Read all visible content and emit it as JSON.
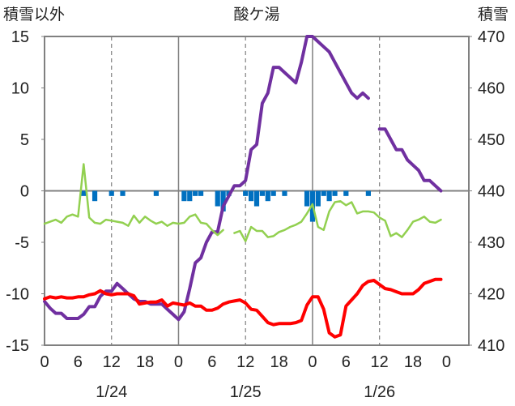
{
  "chart_data": {
    "type": "line",
    "title": "酸ケ湯",
    "left_axis_label": "積雪以外",
    "right_axis_label": "積雪",
    "left_ylim": [
      -15,
      15
    ],
    "left_ticks": [
      "15",
      "10",
      "5",
      "0",
      "-5",
      "-10",
      "-15"
    ],
    "right_ylim": [
      410,
      470
    ],
    "right_ticks": [
      "470",
      "460",
      "450",
      "440",
      "430",
      "420",
      "410"
    ],
    "x_hour_ticks": [
      "0",
      "6",
      "12",
      "18",
      "0",
      "6",
      "12",
      "18",
      "0",
      "6",
      "12",
      "18",
      "0"
    ],
    "date_labels": [
      "1/24",
      "1/25",
      "1/26"
    ],
    "grid": "dashed vertical at 12:00, solid at midnight, solid zero line",
    "colors": {
      "snow_depth": "#7030A0",
      "temperature": "#FF0000",
      "wind": "#92D050",
      "snow_change": "#0070C0",
      "axis": "#808080"
    },
    "series": [
      {
        "key": "snow_depth",
        "axis": "right",
        "points": [
          [
            0,
            418.5
          ],
          [
            1,
            417.2
          ],
          [
            2,
            416.2
          ],
          [
            3,
            416.2
          ],
          [
            4,
            415.2
          ],
          [
            5,
            415.2
          ],
          [
            6,
            415.2
          ],
          [
            7,
            416
          ],
          [
            8,
            417.5
          ],
          [
            9,
            417.5
          ],
          [
            10,
            419.5
          ],
          [
            11,
            420.5
          ],
          [
            12,
            420.5
          ],
          [
            13,
            422
          ],
          [
            14,
            421
          ],
          [
            15,
            420
          ],
          [
            16,
            419
          ],
          [
            17,
            418.5
          ],
          [
            18,
            418.5
          ],
          [
            19,
            418
          ],
          [
            20,
            418
          ],
          [
            21,
            418
          ],
          [
            22,
            417
          ],
          [
            23,
            416
          ],
          [
            24,
            415
          ],
          [
            25,
            416.5
          ],
          [
            26,
            421
          ],
          [
            27,
            426
          ],
          [
            28,
            427
          ],
          [
            29,
            430
          ],
          [
            30,
            432
          ],
          [
            31,
            432
          ],
          [
            32,
            437
          ],
          [
            33,
            439
          ],
          [
            34,
            441
          ],
          [
            35,
            441
          ],
          [
            36,
            442
          ],
          [
            37,
            448
          ],
          [
            38,
            449
          ],
          [
            39,
            457
          ],
          [
            40,
            459
          ],
          [
            41,
            464
          ],
          [
            42,
            464
          ],
          [
            43,
            463
          ],
          [
            44,
            462
          ],
          [
            45,
            461
          ],
          [
            46,
            465
          ],
          [
            47,
            470
          ],
          [
            48,
            470
          ],
          [
            49,
            469
          ],
          [
            50,
            468
          ],
          [
            51,
            467
          ],
          [
            52,
            465
          ],
          [
            53,
            463
          ],
          [
            54,
            461
          ],
          [
            55,
            459
          ],
          [
            56,
            458
          ],
          [
            57,
            459
          ],
          [
            58,
            458
          ],
          null,
          [
            60,
            452
          ],
          [
            61,
            452
          ],
          [
            62,
            450
          ],
          [
            63,
            448
          ],
          [
            64,
            448
          ],
          [
            65,
            446
          ],
          [
            66,
            445
          ],
          [
            67,
            444
          ],
          [
            68,
            442
          ],
          [
            69,
            442
          ],
          [
            70,
            441
          ],
          [
            71,
            440
          ]
        ]
      },
      {
        "key": "temperature",
        "axis": "left",
        "points": [
          [
            0,
            -10.5
          ],
          [
            1,
            -10.3
          ],
          [
            2,
            -10.4
          ],
          [
            3,
            -10.3
          ],
          [
            4,
            -10.4
          ],
          [
            5,
            -10.4
          ],
          [
            6,
            -10.3
          ],
          [
            7,
            -10.3
          ],
          [
            8,
            -10.1
          ],
          [
            9,
            -10
          ],
          [
            10,
            -9.7
          ],
          [
            11,
            -10
          ],
          [
            12,
            -10.1
          ],
          [
            13,
            -10
          ],
          [
            14,
            -10
          ],
          [
            15,
            -10
          ],
          [
            16,
            -10.2
          ],
          [
            17,
            -11
          ],
          [
            18,
            -10.9
          ],
          [
            19,
            -10.8
          ],
          [
            20,
            -10.8
          ],
          [
            21,
            -10.6
          ],
          [
            22,
            -11.2
          ],
          [
            23,
            -10.9
          ],
          [
            24,
            -11
          ],
          [
            25,
            -11.1
          ],
          [
            26,
            -10.9
          ],
          [
            27,
            -11.2
          ],
          [
            28,
            -11.2
          ],
          [
            29,
            -11.6
          ],
          [
            30,
            -11.6
          ],
          [
            31,
            -11.4
          ],
          [
            32,
            -11
          ],
          [
            33,
            -10.8
          ],
          [
            34,
            -10.7
          ],
          [
            35,
            -10.6
          ],
          [
            36,
            -10.9
          ],
          [
            37,
            -11.5
          ],
          [
            38,
            -11.6
          ],
          [
            39,
            -12.2
          ],
          [
            40,
            -12.8
          ],
          [
            41,
            -13
          ],
          [
            42,
            -12.9
          ],
          [
            43,
            -12.9
          ],
          [
            44,
            -12.9
          ],
          [
            45,
            -12.8
          ],
          [
            46,
            -12.6
          ],
          [
            47,
            -11.1
          ],
          [
            48,
            -10.3
          ],
          [
            49,
            -10.3
          ],
          [
            50,
            -11.5
          ],
          [
            51,
            -13.8
          ],
          [
            52,
            -14.2
          ],
          [
            53,
            -14
          ],
          [
            54,
            -11.2
          ],
          [
            55,
            -10.6
          ],
          [
            56,
            -10
          ],
          [
            57,
            -9.2
          ],
          [
            58,
            -8.8
          ],
          [
            59,
            -8.7
          ],
          [
            60,
            -9.1
          ],
          [
            61,
            -9.5
          ],
          [
            62,
            -9.6
          ],
          [
            63,
            -9.8
          ],
          [
            64,
            -10
          ],
          [
            65,
            -10
          ],
          [
            66,
            -10
          ],
          [
            67,
            -9.6
          ],
          [
            68,
            -9
          ],
          [
            69,
            -8.8
          ],
          [
            70,
            -8.6
          ],
          [
            71,
            -8.6
          ]
        ]
      },
      {
        "key": "wind",
        "axis": "left",
        "points": [
          [
            0,
            -3.2
          ],
          [
            1,
            -3
          ],
          [
            2,
            -2.8
          ],
          [
            3,
            -3.1
          ],
          [
            4,
            -2.5
          ],
          [
            5,
            -2.3
          ],
          [
            6,
            -2.5
          ],
          [
            7,
            2.6
          ],
          [
            8,
            -2.6
          ],
          [
            9,
            -3.1
          ],
          [
            10,
            -3.2
          ],
          [
            11,
            -2.8
          ],
          [
            12,
            -2.9
          ],
          [
            13,
            -3
          ],
          [
            14,
            -3.1
          ],
          [
            15,
            -3.4
          ],
          [
            16,
            -2.4
          ],
          [
            17,
            -3.1
          ],
          [
            18,
            -2.5
          ],
          [
            19,
            -2.9
          ],
          [
            20,
            -3.2
          ],
          [
            21,
            -3
          ],
          [
            22,
            -3.4
          ],
          [
            23,
            -3.1
          ],
          [
            24,
            -3.2
          ],
          [
            25,
            -3.1
          ],
          [
            26,
            -2.5
          ],
          [
            27,
            -2.3
          ],
          [
            28,
            -3.1
          ],
          [
            29,
            -3.2
          ],
          [
            30,
            -3.8
          ],
          [
            31,
            -4.3
          ],
          [
            32,
            -3.8
          ],
          null,
          [
            34,
            -4.1
          ],
          [
            35,
            -3.9
          ],
          [
            36,
            -4.9
          ],
          [
            37,
            -3.5
          ],
          [
            38,
            -3.9
          ],
          [
            39,
            -3.9
          ],
          [
            40,
            -4.5
          ],
          [
            41,
            -4.4
          ],
          [
            42,
            -4
          ],
          [
            43,
            -3.8
          ],
          [
            44,
            -3.5
          ],
          [
            45,
            -3.3
          ],
          [
            46,
            -3
          ],
          [
            47,
            -2.2
          ],
          [
            48,
            -1.3
          ],
          [
            49,
            -3.5
          ],
          [
            50,
            -3.8
          ],
          [
            51,
            -2
          ],
          [
            52,
            -1.1
          ],
          [
            53,
            -1
          ],
          [
            54,
            -1.4
          ],
          [
            55,
            -1.1
          ],
          [
            56,
            -2.2
          ],
          [
            57,
            -2
          ],
          [
            58,
            -2
          ],
          [
            59,
            -2.1
          ],
          [
            60,
            -2.6
          ],
          [
            61,
            -2.9
          ],
          [
            62,
            -4.4
          ],
          [
            63,
            -4.1
          ],
          [
            64,
            -4.5
          ],
          [
            65,
            -3.8
          ],
          [
            66,
            -3
          ],
          [
            67,
            -2.8
          ],
          [
            68,
            -2.5
          ],
          [
            69,
            -3
          ],
          [
            70,
            -3.1
          ],
          [
            71,
            -2.8
          ]
        ]
      },
      {
        "key": "snow_change",
        "axis": "left",
        "type": "bar",
        "points": [
          [
            7,
            -0.5
          ],
          [
            9,
            -1
          ],
          [
            12,
            -0.5
          ],
          [
            14,
            -0.5
          ],
          [
            20,
            -0.5
          ],
          [
            25,
            -1
          ],
          [
            26,
            -1
          ],
          [
            27,
            -0.5
          ],
          [
            28,
            -0.5
          ],
          [
            31,
            -1.5
          ],
          [
            32,
            -2
          ],
          [
            33,
            -0.5
          ],
          [
            36,
            -0.5
          ],
          [
            37,
            -1
          ],
          [
            38,
            -1.5
          ],
          [
            39,
            -0.5
          ],
          [
            40,
            -1
          ],
          [
            41,
            -0.5
          ],
          [
            43,
            -0.5
          ],
          [
            47,
            -1.5
          ],
          [
            48,
            -3
          ],
          [
            49,
            -1.5
          ],
          [
            50,
            -0.5
          ],
          [
            51,
            -1
          ],
          [
            52,
            -0.5
          ],
          [
            54,
            -0.5
          ],
          [
            58,
            -0.5
          ]
        ]
      }
    ]
  }
}
